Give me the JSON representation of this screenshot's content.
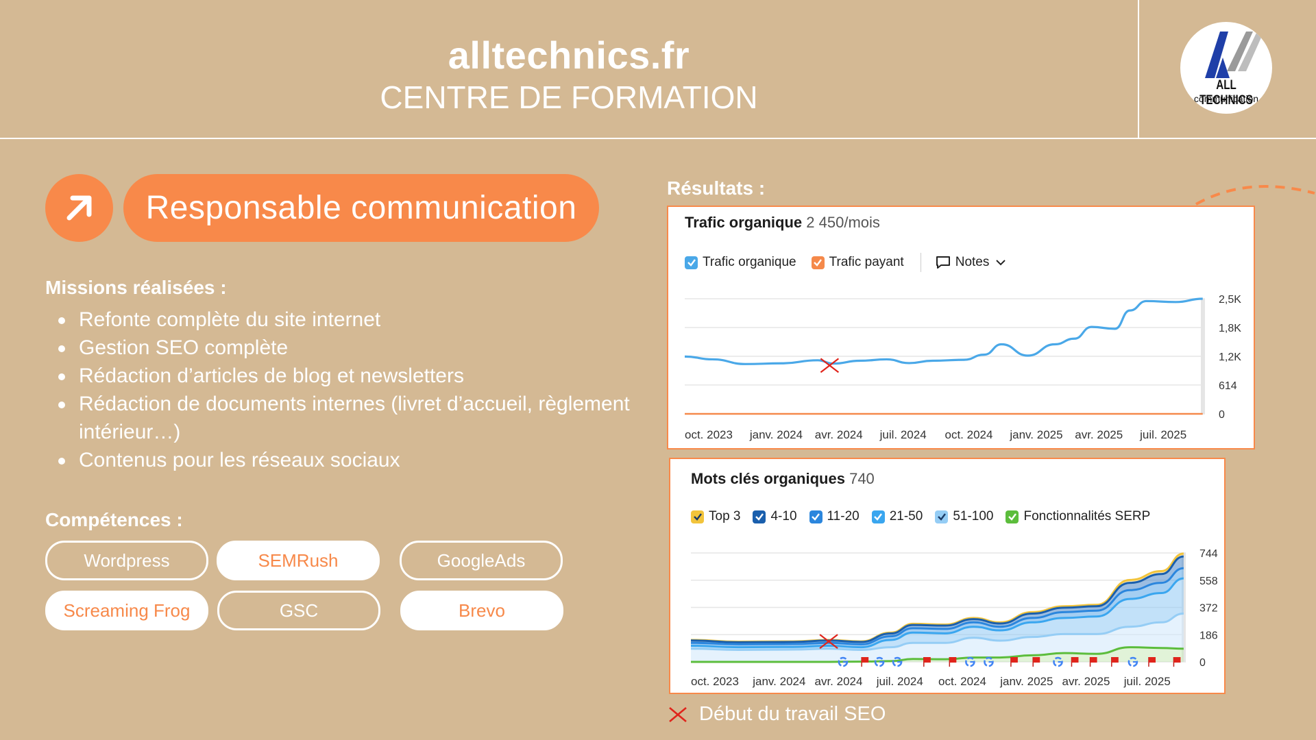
{
  "header": {
    "site": "alltechnics.fr",
    "subtitle": "CENTRE DE FORMATION",
    "logo_text": "ALL TECHNICS",
    "logo_sub": "communication"
  },
  "role": {
    "title": "Responsable communication",
    "icon": "arrow-up-right-icon"
  },
  "missions": {
    "heading": "Missions réalisées :",
    "items": [
      "Refonte complète du site internet",
      "Gestion SEO complète",
      "Rédaction d’articles de blog et newsletters",
      "Rédaction de documents internes (livret d’accueil, règlement intérieur…)",
      "Contenus pour les réseaux sociaux"
    ]
  },
  "skills": {
    "heading": "Compétences :",
    "items": [
      "Wordpress",
      "SEMRush",
      "GoogleAds",
      "Screaming Frog",
      "GSC",
      "Brevo"
    ]
  },
  "results": {
    "heading": "Résultats :"
  },
  "colors": {
    "background": "#d4b994",
    "accent": "#f8894a",
    "organic": "#4aa8e8",
    "serp": "#5cbd3c"
  },
  "footnote": {
    "text": "Début du travail SEO",
    "icon": "red-cross-icon"
  },
  "chart_data": [
    {
      "type": "line",
      "title": "Trafic organique",
      "title_value": "2 450/mois",
      "legend": [
        {
          "label": "Trafic organique",
          "color": "#4aa8e8",
          "checked": true
        },
        {
          "label": "Trafic payant",
          "color": "#f5894a",
          "checked": true
        }
      ],
      "notes_label": "Notes",
      "x_ticks": [
        "oct. 2023",
        "janv. 2024",
        "avr. 2024",
        "juil. 2024",
        "oct. 2024",
        "janv. 2025",
        "avr. 2025",
        "juil. 2025"
      ],
      "y_ticks": [
        "2,5K",
        "1,8K",
        "1,2K",
        "614",
        "0"
      ],
      "y_tick_values": [
        2450,
        1838,
        1225,
        614,
        0
      ],
      "ylim": [
        0,
        2450
      ],
      "xlim": [
        "2023-09-25",
        "2025-08-18"
      ],
      "series": [
        {
          "name": "Trafic organique",
          "color": "#4aa8e8",
          "points": [
            [
              "2023-09-25",
              1220
            ],
            [
              "2023-11-01",
              1160
            ],
            [
              "2023-12-15",
              1060
            ],
            [
              "2024-02-01",
              1075
            ],
            [
              "2024-03-20",
              1140
            ],
            [
              "2024-04-10",
              1070
            ],
            [
              "2024-05-15",
              1130
            ],
            [
              "2024-06-20",
              1160
            ],
            [
              "2024-07-20",
              1080
            ],
            [
              "2024-08-20",
              1130
            ],
            [
              "2024-10-01",
              1150
            ],
            [
              "2024-10-28",
              1260
            ],
            [
              "2024-11-20",
              1480
            ],
            [
              "2024-12-25",
              1240
            ],
            [
              "2025-01-30",
              1480
            ],
            [
              "2025-02-25",
              1600
            ],
            [
              "2025-03-20",
              1850
            ],
            [
              "2025-04-20",
              1810
            ],
            [
              "2025-05-10",
              2200
            ],
            [
              "2025-06-01",
              2400
            ],
            [
              "2025-07-10",
              2380
            ],
            [
              "2025-08-15",
              2450
            ]
          ]
        },
        {
          "name": "Trafic payant",
          "color": "#f5894a",
          "points": [
            [
              "2023-09-25",
              0
            ],
            [
              "2025-08-15",
              0
            ]
          ]
        }
      ],
      "annotation": {
        "label": "Début du travail SEO",
        "date": "2024-04-05",
        "value": 1030
      }
    },
    {
      "type": "area",
      "title": "Mots clés organiques",
      "title_value": "740",
      "legend": [
        {
          "label": "Top 3",
          "color": "#f2c43c"
        },
        {
          "label": "4-10",
          "color": "#1a5fad"
        },
        {
          "label": "11-20",
          "color": "#2b86dd"
        },
        {
          "label": "21-50",
          "color": "#3aa6ef"
        },
        {
          "label": "51-100",
          "color": "#95cdf5"
        },
        {
          "label": "Fonctionnalités SERP",
          "color": "#5cbd3c"
        }
      ],
      "x_ticks": [
        "oct. 2023",
        "janv. 2024",
        "avr. 2024",
        "juil. 2024",
        "oct. 2024",
        "janv. 2025",
        "avr. 2025",
        "juil. 2025"
      ],
      "y_ticks": [
        "744",
        "558",
        "372",
        "186",
        "0"
      ],
      "y_tick_values": [
        744,
        558,
        372,
        186,
        0
      ],
      "ylim": [
        0,
        744
      ],
      "xlim": [
        "2023-09-25",
        "2025-08-18"
      ],
      "x_dates": [
        "2023-09-25",
        "2023-12-01",
        "2024-02-15",
        "2024-04-05",
        "2024-05-20",
        "2024-07-01",
        "2024-08-01",
        "2024-09-15",
        "2024-10-25",
        "2024-12-01",
        "2025-01-15",
        "2025-03-01",
        "2025-04-15",
        "2025-06-01",
        "2025-07-15",
        "2025-08-15"
      ],
      "series": [
        {
          "name": "Top 3",
          "color": "#f2c43c",
          "values": [
            150,
            138,
            140,
            150,
            140,
            200,
            260,
            255,
            300,
            270,
            340,
            380,
            390,
            560,
            620,
            740
          ]
        },
        {
          "name": "4-10",
          "color": "#1a5fad",
          "values": [
            146,
            134,
            136,
            146,
            136,
            194,
            252,
            248,
            292,
            262,
            330,
            370,
            380,
            540,
            600,
            720
          ]
        },
        {
          "name": "11-20",
          "color": "#2b86dd",
          "values": [
            130,
            120,
            122,
            130,
            120,
            175,
            230,
            225,
            270,
            240,
            300,
            340,
            350,
            490,
            540,
            640
          ]
        },
        {
          "name": "21-50",
          "color": "#3aa6ef",
          "values": [
            110,
            100,
            102,
            110,
            100,
            150,
            200,
            195,
            240,
            215,
            270,
            300,
            310,
            430,
            470,
            570
          ]
        },
        {
          "name": "51-100",
          "color": "#95cdf5",
          "values": [
            90,
            82,
            84,
            90,
            82,
            100,
            130,
            130,
            165,
            145,
            170,
            190,
            190,
            240,
            270,
            330
          ]
        },
        {
          "name": "Fonctionnalités SERP",
          "color": "#5cbd3c",
          "values": [
            0,
            0,
            0,
            0,
            2,
            5,
            20,
            18,
            30,
            30,
            45,
            60,
            55,
            100,
            95,
            90
          ]
        }
      ],
      "annotation": {
        "label": "Début du travail SEO",
        "date": "2024-04-05",
        "value": 140
      },
      "event_markers": [
        {
          "date": "2024-04-25",
          "kind": "google"
        },
        {
          "date": "2024-05-25",
          "kind": "flag"
        },
        {
          "date": "2024-06-15",
          "kind": "google"
        },
        {
          "date": "2024-07-10",
          "kind": "google"
        },
        {
          "date": "2024-08-20",
          "kind": "flag"
        },
        {
          "date": "2024-09-25",
          "kind": "flag"
        },
        {
          "date": "2024-10-20",
          "kind": "google"
        },
        {
          "date": "2024-11-15",
          "kind": "google"
        },
        {
          "date": "2024-12-20",
          "kind": "flag"
        },
        {
          "date": "2025-01-20",
          "kind": "flag"
        },
        {
          "date": "2025-02-20",
          "kind": "google"
        },
        {
          "date": "2025-03-15",
          "kind": "flag"
        },
        {
          "date": "2025-04-10",
          "kind": "flag"
        },
        {
          "date": "2025-05-10",
          "kind": "flag"
        },
        {
          "date": "2025-06-05",
          "kind": "google"
        },
        {
          "date": "2025-07-01",
          "kind": "flag"
        },
        {
          "date": "2025-08-05",
          "kind": "flag"
        }
      ]
    }
  ]
}
